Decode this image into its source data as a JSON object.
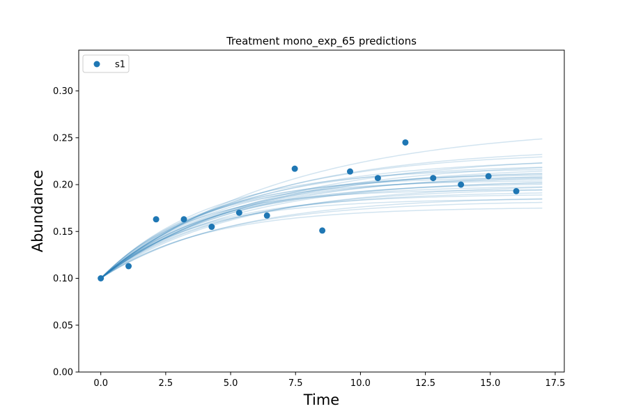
{
  "chart_data": {
    "type": "line",
    "title": "Treatment mono_exp_65 predictions",
    "xlabel": "Time",
    "ylabel": "Abundance",
    "xlim": [
      -0.85,
      17.85
    ],
    "ylim": [
      0.0,
      0.3435
    ],
    "x_ticks": [
      0.0,
      2.5,
      5.0,
      7.5,
      10.0,
      12.5,
      15.0,
      17.5
    ],
    "x_tick_labels": [
      "0.0",
      "2.5",
      "5.0",
      "7.5",
      "10.0",
      "12.5",
      "15.0",
      "17.5"
    ],
    "y_ticks": [
      0.0,
      0.05,
      0.1,
      0.15,
      0.2,
      0.25,
      0.3
    ],
    "y_tick_labels": [
      "0.00",
      "0.05",
      "0.10",
      "0.15",
      "0.20",
      "0.25",
      "0.30"
    ],
    "grid": false,
    "legend": {
      "position": "top-left",
      "entries": [
        "s1"
      ]
    },
    "colors": {
      "series": "#1f77b4"
    },
    "series": [
      {
        "name": "s1",
        "style": "scatter",
        "points": [
          {
            "x": 0.0,
            "y": 0.1
          },
          {
            "x": 1.07,
            "y": 0.113
          },
          {
            "x": 2.13,
            "y": 0.163
          },
          {
            "x": 3.2,
            "y": 0.163
          },
          {
            "x": 4.27,
            "y": 0.155
          },
          {
            "x": 5.33,
            "y": 0.17
          },
          {
            "x": 6.4,
            "y": 0.167
          },
          {
            "x": 7.47,
            "y": 0.217
          },
          {
            "x": 8.53,
            "y": 0.151
          },
          {
            "x": 9.6,
            "y": 0.214
          },
          {
            "x": 10.67,
            "y": 0.207
          },
          {
            "x": 11.73,
            "y": 0.245
          },
          {
            "x": 12.8,
            "y": 0.207
          },
          {
            "x": 13.87,
            "y": 0.2
          },
          {
            "x": 14.93,
            "y": 0.209
          },
          {
            "x": 16.0,
            "y": 0.193
          }
        ]
      },
      {
        "name": "",
        "style": "prediction-curves",
        "x_range": [
          0.0,
          17.0
        ],
        "initial_value": 0.1,
        "model": "y = A + (y0 - A) * exp(-k * t)",
        "curves": [
          {
            "asymptote": 0.176,
            "rate": 0.25
          },
          {
            "asymptote": 0.183,
            "rate": 0.22
          },
          {
            "asymptote": 0.185,
            "rate": 0.28
          },
          {
            "asymptote": 0.188,
            "rate": 0.2
          },
          {
            "asymptote": 0.19,
            "rate": 0.26
          },
          {
            "asymptote": 0.193,
            "rate": 0.23
          },
          {
            "asymptote": 0.195,
            "rate": 0.3
          },
          {
            "asymptote": 0.197,
            "rate": 0.21
          },
          {
            "asymptote": 0.199,
            "rate": 0.25
          },
          {
            "asymptote": 0.201,
            "rate": 0.19
          },
          {
            "asymptote": 0.202,
            "rate": 0.24
          },
          {
            "asymptote": 0.204,
            "rate": 0.22
          },
          {
            "asymptote": 0.205,
            "rate": 0.27
          },
          {
            "asymptote": 0.206,
            "rate": 0.2
          },
          {
            "asymptote": 0.208,
            "rate": 0.23
          },
          {
            "asymptote": 0.209,
            "rate": 0.26
          },
          {
            "asymptote": 0.21,
            "rate": 0.21
          },
          {
            "asymptote": 0.212,
            "rate": 0.24
          },
          {
            "asymptote": 0.213,
            "rate": 0.19
          },
          {
            "asymptote": 0.214,
            "rate": 0.22
          },
          {
            "asymptote": 0.216,
            "rate": 0.2
          },
          {
            "asymptote": 0.218,
            "rate": 0.24
          },
          {
            "asymptote": 0.22,
            "rate": 0.18
          },
          {
            "asymptote": 0.222,
            "rate": 0.21
          },
          {
            "asymptote": 0.225,
            "rate": 0.17
          },
          {
            "asymptote": 0.228,
            "rate": 0.19
          },
          {
            "asymptote": 0.232,
            "rate": 0.16
          },
          {
            "asymptote": 0.236,
            "rate": 0.18
          },
          {
            "asymptote": 0.24,
            "rate": 0.17
          },
          {
            "asymptote": 0.264,
            "rate": 0.14
          }
        ]
      }
    ]
  }
}
